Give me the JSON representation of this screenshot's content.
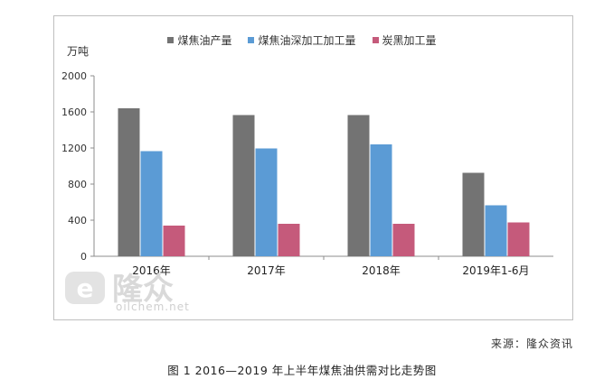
{
  "chart_data": {
    "type": "bar",
    "categories": [
      "2016年",
      "2017年",
      "2018年",
      "2019年1-6月"
    ],
    "series": [
      {
        "name": "煤焦油产量",
        "color": "#737373",
        "values": [
          1640,
          1565,
          1565,
          925
        ]
      },
      {
        "name": "煤焦油深加工加工量",
        "color": "#5b9bd5",
        "values": [
          1165,
          1195,
          1240,
          565
        ]
      },
      {
        "name": "炭黑加工量",
        "color": "#c55a7b",
        "values": [
          340,
          360,
          360,
          375
        ]
      }
    ],
    "yunit": "万吨",
    "ylim": [
      0,
      2000
    ],
    "yticks": [
      0,
      400,
      800,
      1200,
      1600,
      2000
    ],
    "ytick_labels": [
      "0",
      "400",
      "800",
      "1200",
      "1600",
      "2000"
    ],
    "legend_position": "top",
    "grid": false
  },
  "source_text": "来源：隆众资讯",
  "caption": "图 1  2016—2019 年上半年煤焦油供需对比走势图",
  "watermark": {
    "name": "隆众",
    "site": "oilchem.net"
  }
}
